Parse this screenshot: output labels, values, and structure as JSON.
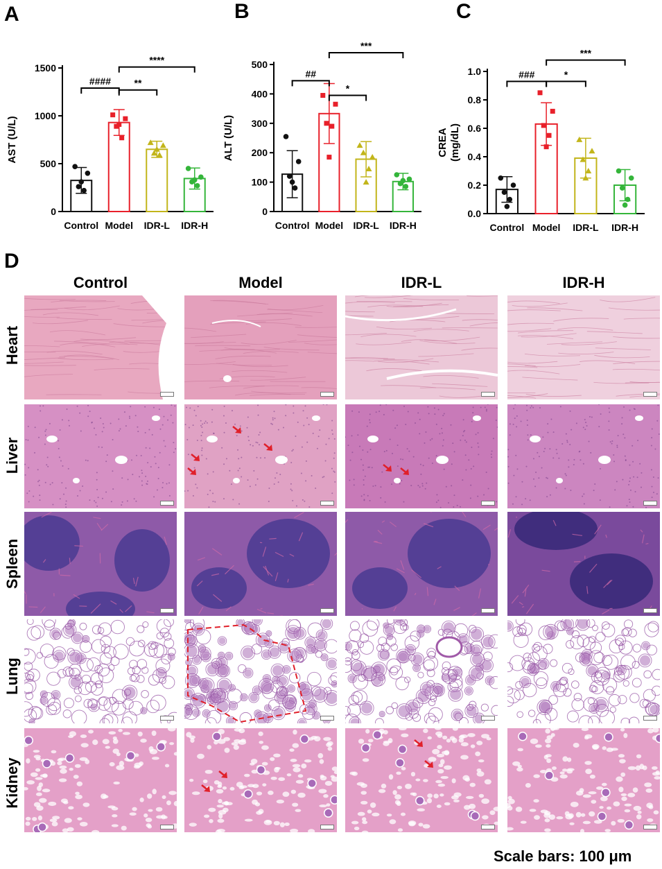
{
  "panels": {
    "A": "A",
    "B": "B",
    "C": "C",
    "D": "D"
  },
  "colors": {
    "Control": "#111111",
    "Model": "#e8202a",
    "IDR-L": "#c2b51a",
    "IDR-H": "#34b53a"
  },
  "chart_data": [
    {
      "type": "bar",
      "panel": "A",
      "ylabel": "AST (U/L)",
      "ylim": [
        0,
        1500
      ],
      "yticks": [
        0,
        500,
        1000,
        1500
      ],
      "categories": [
        "Control",
        "Model",
        "IDR-L",
        "IDR-H"
      ],
      "values": [
        325,
        930,
        650,
        345
      ],
      "errors": [
        135,
        135,
        85,
        110
      ],
      "points": [
        [
          470,
          400,
          260,
          220,
          310
        ],
        [
          1010,
          970,
          890,
          770,
          910
        ],
        [
          720,
          690,
          610,
          590,
          650
        ],
        [
          450,
          360,
          310,
          270,
          330
        ]
      ],
      "point_shapes": [
        "circle",
        "square",
        "triangle",
        "circle"
      ],
      "annotations": [
        {
          "from": 0,
          "to": 1,
          "level": 1290,
          "label": "####"
        },
        {
          "from": 1,
          "to": 2,
          "level": 1270,
          "label": "**"
        },
        {
          "from": 1,
          "to": 3,
          "level": 1510,
          "label": "****"
        }
      ]
    },
    {
      "type": "bar",
      "panel": "B",
      "ylabel": "ALT (U/L)",
      "ylim": [
        0,
        500
      ],
      "yticks": [
        0,
        100,
        200,
        300,
        400,
        500
      ],
      "categories": [
        "Control",
        "Model",
        "IDR-L",
        "IDR-H"
      ],
      "values": [
        127,
        333,
        178,
        102
      ],
      "errors": [
        80,
        102,
        60,
        28
      ],
      "points": [
        [
          255,
          170,
          120,
          80,
          100
        ],
        [
          395,
          365,
          300,
          290,
          185
        ],
        [
          225,
          185,
          200,
          145,
          100
        ],
        [
          125,
          110,
          95,
          85,
          105
        ]
      ],
      "point_shapes": [
        "circle",
        "square",
        "triangle",
        "circle"
      ],
      "annotations": [
        {
          "from": 0,
          "to": 1,
          "level": 445,
          "label": "##"
        },
        {
          "from": 1,
          "to": 2,
          "level": 395,
          "label": "*"
        },
        {
          "from": 1,
          "to": 3,
          "level": 540,
          "label": "***"
        }
      ]
    },
    {
      "type": "bar",
      "panel": "C",
      "ylabel": "CREA\n(mg/dL)",
      "ylim": [
        0,
        1.0
      ],
      "yticks": [
        0.0,
        0.2,
        0.4,
        0.6,
        0.8,
        1.0
      ],
      "ytick_labels": [
        "0.0",
        "0.2",
        "0.4",
        "0.6",
        "0.8",
        "1.0"
      ],
      "categories": [
        "Control",
        "Model",
        "IDR-L",
        "IDR-H"
      ],
      "values": [
        0.17,
        0.63,
        0.39,
        0.2
      ],
      "errors": [
        0.09,
        0.15,
        0.14,
        0.11
      ],
      "points": [
        [
          0.25,
          0.2,
          0.15,
          0.1,
          0.05
        ],
        [
          0.85,
          0.72,
          0.62,
          0.55,
          0.47
        ],
        [
          0.52,
          0.44,
          0.38,
          0.3,
          0.25
        ],
        [
          0.3,
          0.25,
          0.18,
          0.1,
          0.06
        ]
      ],
      "point_shapes": [
        "circle",
        "square",
        "triangle",
        "circle"
      ],
      "annotations": [
        {
          "from": 0,
          "to": 1,
          "level": 0.93,
          "label": "###"
        },
        {
          "from": 1,
          "to": 2,
          "level": 0.93,
          "label": "*"
        },
        {
          "from": 1,
          "to": 3,
          "level": 1.08,
          "label": "***"
        }
      ]
    }
  ],
  "histology": {
    "columns": [
      "Control",
      "Model",
      "IDR-L",
      "IDR-H"
    ],
    "rows": [
      "Heart",
      "Liver",
      "Spleen",
      "Lung",
      "Kidney"
    ],
    "scale_caption": "Scale bars: 100 μm"
  }
}
